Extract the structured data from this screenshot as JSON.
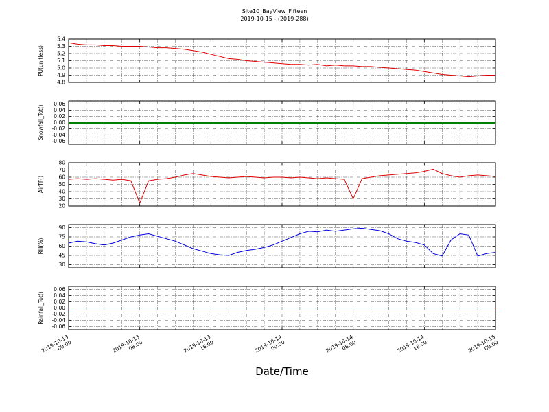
{
  "figure": {
    "title": "Site10_BayView_Fifteen",
    "subtitle": "2019-10-15 - (2019-288)",
    "xlabel": "Date/Time",
    "background": "#ffffff"
  },
  "x_hours": [
    0,
    1,
    2,
    3,
    4,
    5,
    6,
    7,
    8,
    9,
    10,
    11,
    12,
    13,
    14,
    15,
    16,
    17,
    18,
    19,
    20,
    21,
    22,
    23,
    24,
    25,
    26,
    27,
    28,
    29,
    30,
    31,
    32,
    33,
    34,
    35,
    36,
    37,
    38,
    39,
    40,
    41,
    42,
    43,
    44,
    45,
    46,
    47,
    48
  ],
  "x_ticks": [
    {
      "hour": 0,
      "date": "2019-10-13",
      "time": "00:00"
    },
    {
      "hour": 8,
      "date": "2019-10-13",
      "time": "08:00"
    },
    {
      "hour": 16,
      "date": "2019-10-13",
      "time": "16:00"
    },
    {
      "hour": 24,
      "date": "2019-10-14",
      "time": "00:00"
    },
    {
      "hour": 32,
      "date": "2019-10-14",
      "time": "08:00"
    },
    {
      "hour": 40,
      "date": "2019-10-14",
      "time": "16:00"
    },
    {
      "hour": 48,
      "date": "2019-10-15",
      "time": "00:00"
    }
  ],
  "chart_data": [
    {
      "id": "pu",
      "type": "line",
      "ylabel": "PU(unitless)",
      "ylim": [
        4.8,
        5.4
      ],
      "yticks": [
        4.8,
        4.9,
        5.0,
        5.1,
        5.2,
        5.3,
        5.4
      ],
      "ytick_labels": [
        "4.8",
        "4.9",
        "5.0",
        "5.1",
        "5.2",
        "5.3",
        "5.4"
      ],
      "color": "#dd0000",
      "linewidth": 1,
      "values": [
        5.35,
        5.33,
        5.32,
        5.32,
        5.31,
        5.31,
        5.3,
        5.3,
        5.3,
        5.29,
        5.28,
        5.28,
        5.27,
        5.26,
        5.24,
        5.22,
        5.19,
        5.16,
        5.13,
        5.12,
        5.1,
        5.09,
        5.08,
        5.07,
        5.06,
        5.05,
        5.05,
        5.04,
        5.05,
        5.03,
        5.04,
        5.03,
        5.03,
        5.02,
        5.02,
        5.01,
        5.0,
        4.99,
        4.98,
        4.97,
        4.95,
        4.93,
        4.91,
        4.9,
        4.89,
        4.88,
        4.89,
        4.9,
        4.9
      ]
    },
    {
      "id": "snowfall",
      "type": "line",
      "ylabel": "Snowfall_Tot()",
      "ylim": [
        -0.07,
        0.07
      ],
      "yticks": [
        -0.06,
        -0.04,
        -0.02,
        0.0,
        0.02,
        0.04,
        0.06
      ],
      "ytick_labels": [
        "-0.06",
        "-0.04",
        "-0.02",
        "0.00",
        "0.02",
        "0.04",
        "0.06"
      ],
      "color": "#008000",
      "linewidth": 3,
      "values": [
        0,
        0,
        0,
        0,
        0,
        0,
        0,
        0,
        0,
        0,
        0,
        0,
        0,
        0,
        0,
        0,
        0,
        0,
        0,
        0,
        0,
        0,
        0,
        0,
        0,
        0,
        0,
        0,
        0,
        0,
        0,
        0,
        0,
        0,
        0,
        0,
        0,
        0,
        0,
        0,
        0,
        0,
        0,
        0,
        0,
        0,
        0,
        0,
        0
      ]
    },
    {
      "id": "airtf",
      "type": "line",
      "ylabel": "AirTF()",
      "ylim": [
        20,
        80
      ],
      "yticks": [
        20,
        30,
        40,
        50,
        60,
        70,
        80
      ],
      "ytick_labels": [
        "20",
        "30",
        "40",
        "50",
        "60",
        "70",
        "80"
      ],
      "color": "#dd0000",
      "linewidth": 1,
      "values": [
        57,
        58,
        57,
        58,
        57,
        56,
        57,
        55,
        24,
        55,
        57,
        58,
        60,
        63,
        65,
        63,
        61,
        60,
        59,
        60,
        61,
        60,
        59,
        60,
        60,
        59,
        60,
        59,
        58,
        59,
        58,
        57,
        30,
        58,
        60,
        62,
        63,
        64,
        65,
        66,
        68,
        71,
        65,
        62,
        60,
        62,
        63,
        62,
        61
      ]
    },
    {
      "id": "rh",
      "type": "line",
      "ylabel": "RH(%)",
      "ylim": [
        25,
        95
      ],
      "yticks": [
        30,
        45,
        60,
        75,
        90
      ],
      "ytick_labels": [
        "30",
        "45",
        "60",
        "75",
        "90"
      ],
      "color": "#0000dd",
      "linewidth": 1,
      "values": [
        65,
        68,
        67,
        64,
        62,
        65,
        70,
        75,
        78,
        80,
        76,
        72,
        68,
        62,
        56,
        52,
        48,
        46,
        45,
        50,
        53,
        55,
        58,
        62,
        68,
        74,
        80,
        84,
        83,
        86,
        84,
        86,
        88,
        89,
        87,
        85,
        80,
        72,
        68,
        66,
        62,
        48,
        44,
        70,
        80,
        78,
        44,
        48,
        50
      ]
    },
    {
      "id": "rainfall",
      "type": "line",
      "ylabel": "Rainfall_Tot()",
      "ylim": [
        -0.07,
        0.07
      ],
      "yticks": [
        -0.06,
        -0.04,
        -0.02,
        0.0,
        0.02,
        0.04,
        0.06
      ],
      "ytick_labels": [
        "-0.06",
        "-0.04",
        "-0.02",
        "0.00",
        "0.02",
        "0.04",
        "0.06"
      ],
      "color": "#ff0000",
      "linewidth": 1,
      "values": [
        0,
        0,
        0,
        0,
        0,
        0,
        0,
        0,
        0,
        0,
        0,
        0,
        0,
        0,
        0,
        0,
        0,
        0,
        0,
        0,
        0,
        0,
        0,
        0,
        0,
        0,
        0,
        0,
        0,
        0,
        0,
        0,
        0,
        0,
        0,
        0,
        0,
        0,
        0,
        0,
        0,
        0,
        0,
        0,
        0,
        0,
        0,
        0,
        0
      ]
    }
  ]
}
